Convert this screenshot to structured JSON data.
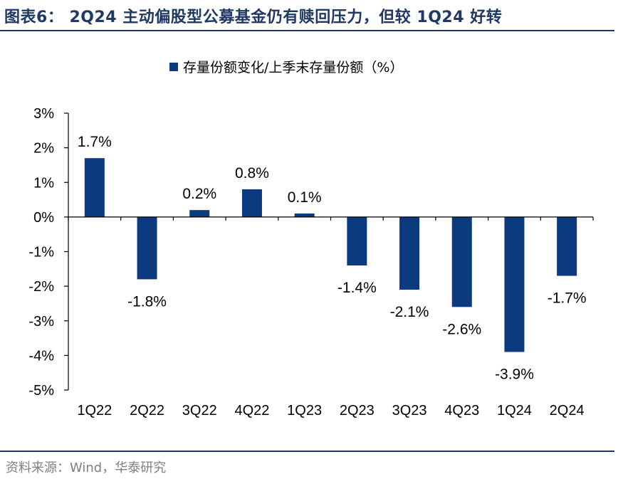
{
  "header": {
    "title": "图表6：  2Q24 主动偏股型公募基金仍有赎回压力，但较 1Q24 好转"
  },
  "footer": {
    "source": "资料来源：Wind，华泰研究"
  },
  "colors": {
    "bar": "#0b3a7e",
    "rule": "#1f3864",
    "axis": "#000000"
  },
  "chart_data": {
    "type": "bar",
    "title": "",
    "legend": [
      "存量份额变化/上季末存量份额（%）"
    ],
    "legend_position": "top-center",
    "categories": [
      "1Q22",
      "2Q22",
      "3Q22",
      "4Q22",
      "1Q23",
      "2Q23",
      "3Q23",
      "4Q23",
      "1Q24",
      "2Q24"
    ],
    "series": [
      {
        "name": "存量份额变化/上季末存量份额（%）",
        "values": [
          1.7,
          -1.8,
          0.2,
          0.8,
          0.1,
          -1.4,
          -2.1,
          -2.6,
          -3.9,
          -1.7
        ],
        "labels": [
          "1.7%",
          "-1.8%",
          "0.2%",
          "0.8%",
          "0.1%",
          "-1.4%",
          "-2.1%",
          "-2.6%",
          "-3.9%",
          "-1.7%"
        ]
      }
    ],
    "y_ticks": [
      "3%",
      "2%",
      "1%",
      "0%",
      "-1%",
      "-2%",
      "-3%",
      "-4%",
      "-5%"
    ],
    "ylim": [
      -5,
      3
    ],
    "xlabel": "",
    "ylabel": "",
    "grid": false
  }
}
